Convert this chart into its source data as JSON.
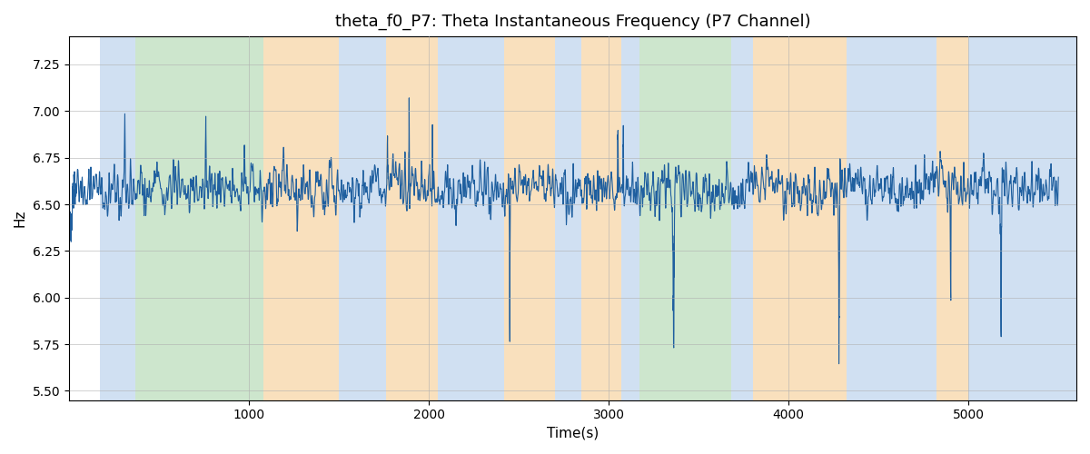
{
  "title": "theta_f0_P7: Theta Instantaneous Frequency (P7 Channel)",
  "xlabel": "Time(s)",
  "ylabel": "Hz",
  "xlim": [
    0,
    5600
  ],
  "ylim": [
    5.45,
    7.4
  ],
  "line_color": "#1f5f9f",
  "line_width": 0.8,
  "bg_color": "#ffffff",
  "grid_color": "#b0b0b0",
  "title_fontsize": 13,
  "axis_fontsize": 11,
  "yticks": [
    5.5,
    5.75,
    6.0,
    6.25,
    6.5,
    6.75,
    7.0,
    7.25
  ],
  "xticks": [
    1000,
    2000,
    3000,
    4000,
    5000
  ],
  "bands": [
    {
      "start": 170,
      "end": 370,
      "color": "#aac8e8",
      "alpha": 0.55
    },
    {
      "start": 370,
      "end": 1080,
      "color": "#90c890",
      "alpha": 0.45
    },
    {
      "start": 1080,
      "end": 1500,
      "color": "#f5c888",
      "alpha": 0.55
    },
    {
      "start": 1500,
      "end": 1760,
      "color": "#aac8e8",
      "alpha": 0.55
    },
    {
      "start": 1760,
      "end": 2050,
      "color": "#f5c888",
      "alpha": 0.55
    },
    {
      "start": 2050,
      "end": 2420,
      "color": "#aac8e8",
      "alpha": 0.55
    },
    {
      "start": 2420,
      "end": 2700,
      "color": "#f5c888",
      "alpha": 0.55
    },
    {
      "start": 2700,
      "end": 2850,
      "color": "#aac8e8",
      "alpha": 0.55
    },
    {
      "start": 2850,
      "end": 3070,
      "color": "#f5c888",
      "alpha": 0.55
    },
    {
      "start": 3070,
      "end": 3170,
      "color": "#aac8e8",
      "alpha": 0.55
    },
    {
      "start": 3170,
      "end": 3680,
      "color": "#90c890",
      "alpha": 0.45
    },
    {
      "start": 3680,
      "end": 3800,
      "color": "#aac8e8",
      "alpha": 0.55
    },
    {
      "start": 3800,
      "end": 4320,
      "color": "#f5c888",
      "alpha": 0.55
    },
    {
      "start": 4320,
      "end": 4820,
      "color": "#aac8e8",
      "alpha": 0.55
    },
    {
      "start": 4820,
      "end": 5000,
      "color": "#f5c888",
      "alpha": 0.55
    },
    {
      "start": 5000,
      "end": 5600,
      "color": "#aac8e8",
      "alpha": 0.55
    }
  ],
  "seed": 123,
  "n_points": 5500,
  "freq_mean": 6.58,
  "freq_std": 0.22
}
